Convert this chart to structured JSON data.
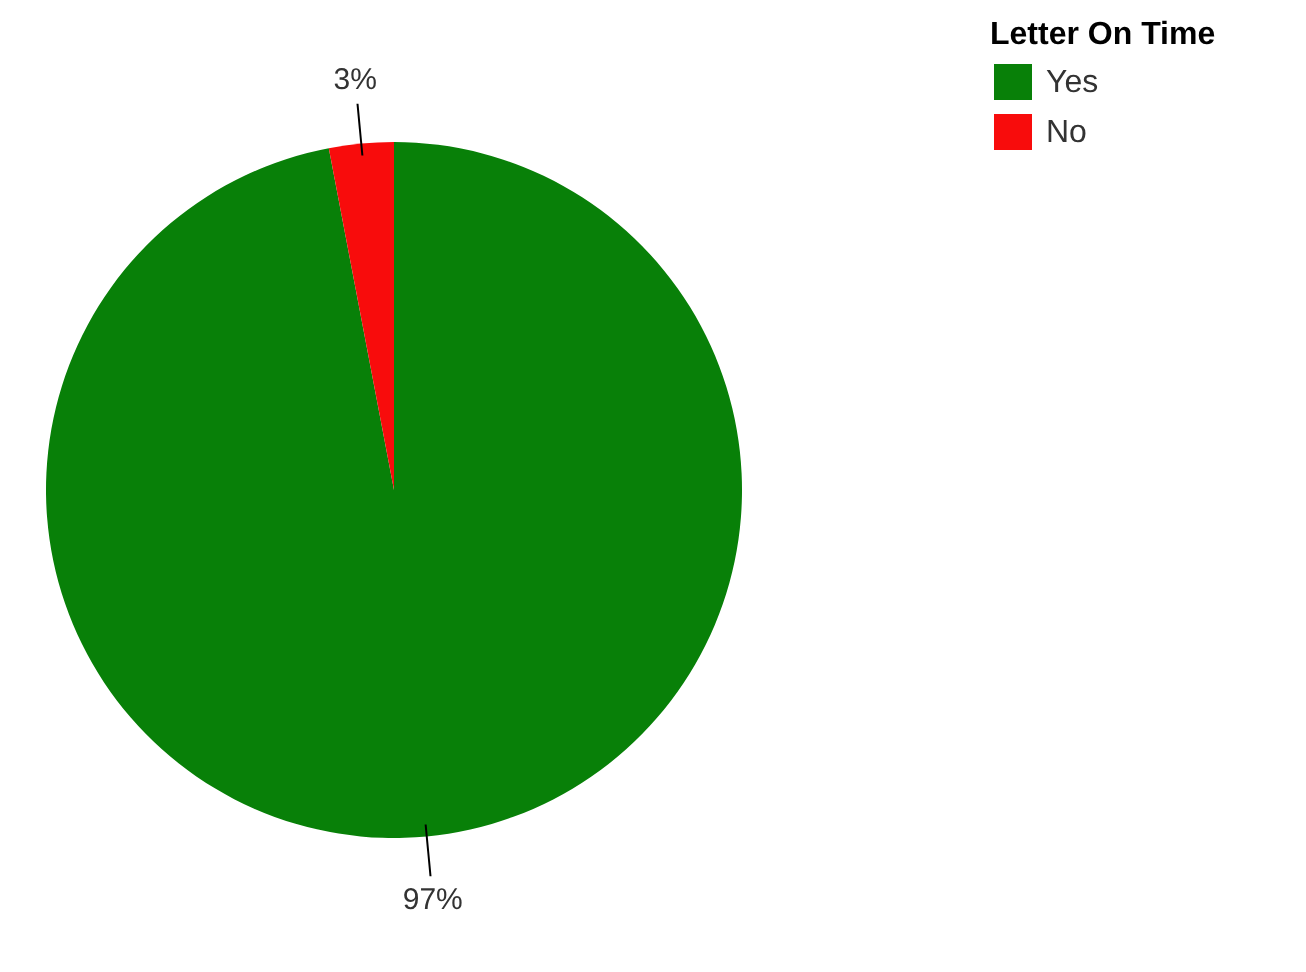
{
  "chart_data": {
    "type": "pie",
    "legend_title": "Letter On Time",
    "categories": [
      "Yes",
      "No"
    ],
    "values": [
      97,
      3
    ],
    "colors": [
      "#088008",
      "#f80c0c"
    ],
    "legend": "top right",
    "value_labels": [
      "97%",
      "3%"
    ]
  }
}
